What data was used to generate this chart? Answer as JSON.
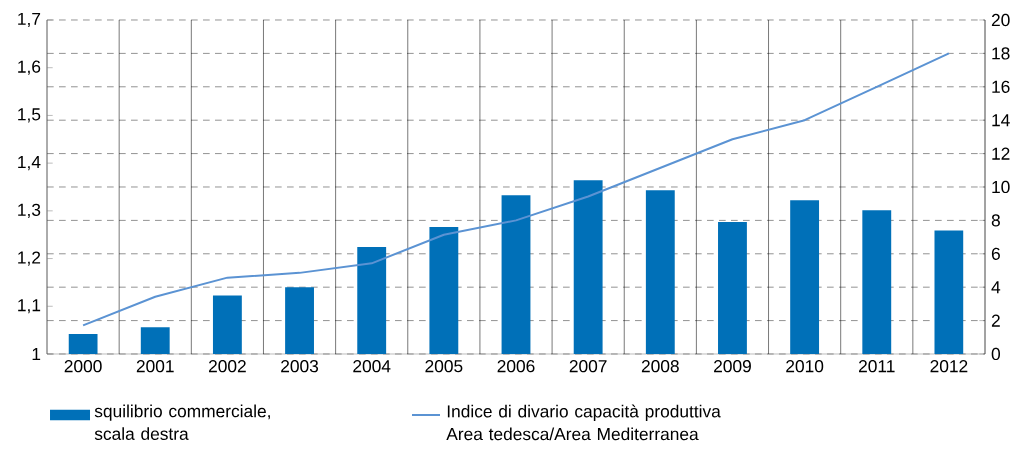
{
  "chart_data": {
    "type": "bar",
    "categories": [
      "2000",
      "2001",
      "2002",
      "2003",
      "2004",
      "2005",
      "2006",
      "2007",
      "2008",
      "2009",
      "2010",
      "2011",
      "2012"
    ],
    "series": [
      {
        "name": "squilibrio commerciale, scala destra",
        "axis": "y2",
        "color": "#0070b8",
        "values": [
          1.2,
          1.6,
          3.5,
          4.0,
          6.4,
          7.6,
          9.5,
          10.4,
          9.8,
          7.9,
          9.2,
          8.6,
          7.4
        ]
      },
      {
        "name": "Indice di divario capacità produttiva Area tedesca/Area Mediterranea",
        "type": "line",
        "axis": "y",
        "color": "#5b93d3",
        "values": [
          1.06,
          1.12,
          1.16,
          1.17,
          1.19,
          1.25,
          1.28,
          1.33,
          1.39,
          1.45,
          1.49,
          1.56,
          1.63
        ]
      }
    ],
    "ylim": [
      1,
      1.7
    ],
    "yticks": [
      1,
      {
        "value": 1.1,
        "label": "1,1"
      },
      {
        "value": 1.2,
        "label": "1,2"
      },
      {
        "value": 1.3,
        "label": "1,3"
      },
      {
        "value": 1.4,
        "label": "1,4"
      },
      {
        "value": 1.5,
        "label": "1,5"
      },
      {
        "value": 1.6,
        "label": "1,6"
      },
      {
        "value": 1.7,
        "label": "1,7"
      }
    ],
    "y2lim": [
      0,
      20
    ],
    "y2ticks": [
      0,
      2,
      4,
      6,
      8,
      10,
      12,
      14,
      16,
      18,
      20
    ],
    "grid": true,
    "legend": "bottom"
  }
}
